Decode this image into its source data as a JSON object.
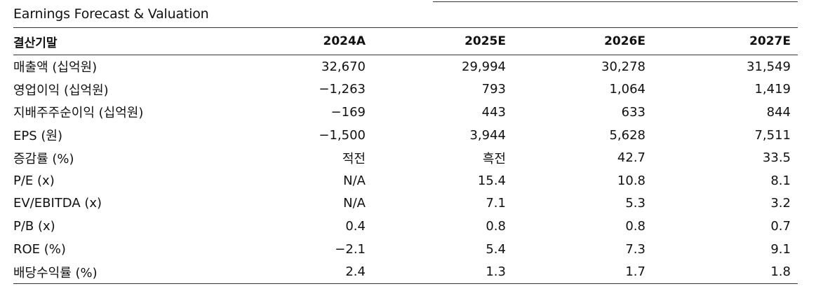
{
  "title": "Earnings Forecast & Valuation",
  "header": [
    "결산기말",
    "2024A",
    "2025E",
    "2026E",
    "2027E"
  ],
  "rows": [
    {
      "label": "매출액 (십억원)",
      "values": [
        "32,670",
        "29,994",
        "30,278",
        "31,549"
      ]
    },
    {
      "label": "영업이익 (십억원)",
      "values": [
        "−1,263",
        "793",
        "1,064",
        "1,419"
      ]
    },
    {
      "label": "지배주주순이익 (십억원)",
      "values": [
        "−169",
        "443",
        "633",
        "844"
      ]
    },
    {
      "label": "EPS (원)",
      "values": [
        "−1,500",
        "3,944",
        "5,628",
        "7,511"
      ]
    },
    {
      "label": "증감률 (%)",
      "values": [
        "적전",
        "흑전",
        "42.7",
        "33.5"
      ]
    },
    {
      "label": "P/E (x)",
      "values": [
        "N/A",
        "15.4",
        "10.8",
        "8.1"
      ]
    },
    {
      "label": "EV/EBITDA (x)",
      "values": [
        "N/A",
        "7.1",
        "5.3",
        "3.2"
      ]
    },
    {
      "label": "P/B (x)",
      "values": [
        "0.4",
        "0.8",
        "0.8",
        "0.7"
      ]
    },
    {
      "label": "ROE (%)",
      "values": [
        "−2.1",
        "5.4",
        "7.3",
        "9.1"
      ]
    },
    {
      "label": "배당수익률 (%)",
      "values": [
        "2.4",
        "1.3",
        "1.7",
        "1.8"
      ]
    }
  ]
}
